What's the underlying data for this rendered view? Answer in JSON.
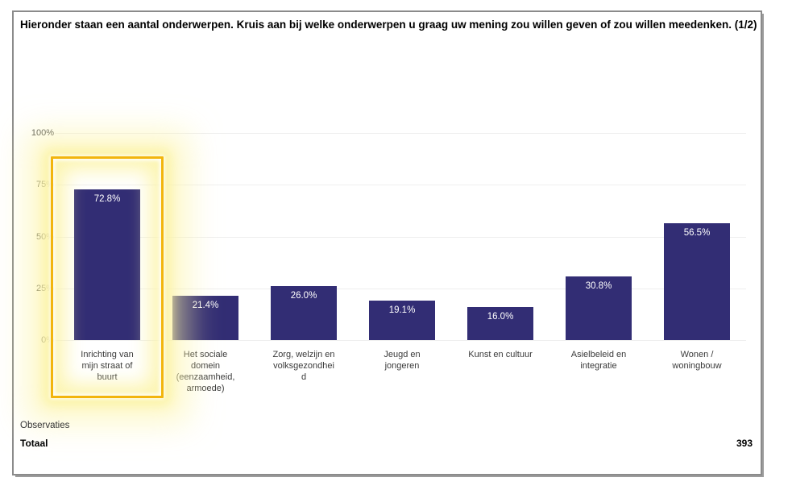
{
  "title": "Hieronder staan een aantal onderwerpen. Kruis aan bij welke onderwerpen u graag uw mening zou willen geven of zou willen meedenken. (1/2)",
  "chart_data": {
    "type": "bar",
    "title": "",
    "xlabel": "",
    "ylabel": "",
    "categories": [
      "Inrichting van mijn straat of buurt",
      "Het sociale domein (eenzaamheid, armoede)",
      "Zorg, welzijn en volksgezondheid",
      "Jeugd en jongeren",
      "Kunst en cultuur",
      "Asielbeleid en integratie",
      "Wonen / woningbouw"
    ],
    "category_labels": [
      "Inrichting van\nmijn straat of\nbuurt",
      "Het sociale\ndomein\n(eenzaamheid,\narmoede)",
      "Zorg, welzijn en\nvolksgezondhei\nd",
      "Jeugd en\njongeren",
      "Kunst en cultuur",
      "Asielbeleid en\nintegratie",
      "Wonen /\nwoningbouw"
    ],
    "values": [
      72.8,
      21.4,
      26.0,
      19.1,
      16.0,
      30.8,
      56.5
    ],
    "value_labels": [
      "72.8%",
      "21.4%",
      "26.0%",
      "19.1%",
      "16.0%",
      "30.8%",
      "56.5%"
    ],
    "yticks": [
      "100%",
      "75%",
      "50%",
      "25%",
      "0%"
    ],
    "ylim": [
      0,
      100
    ],
    "grid": true,
    "legend": false,
    "bar_color": "#322d74",
    "value_label_color": "#ffffff",
    "highlight": {
      "category_index": 0,
      "border_color": "#f2b50d",
      "glow_color": "#fcf3a3"
    }
  },
  "footer": {
    "observations_label": "Observaties",
    "total_label": "Totaal",
    "total_value": "393"
  }
}
